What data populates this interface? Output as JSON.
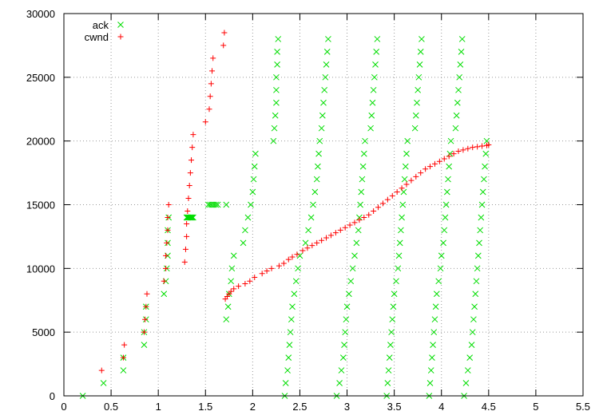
{
  "chart_data": {
    "type": "scatter",
    "title": "",
    "xlabel": "",
    "ylabel": "",
    "xlim": [
      0,
      5.5
    ],
    "ylim": [
      0,
      30000
    ],
    "grid": true,
    "grid_style": "dotted",
    "legend_position": "top-left",
    "x_ticks": [
      "0",
      "0.5",
      "1",
      "1.5",
      "2",
      "2.5",
      "3",
      "3.5",
      "4",
      "4.5",
      "5",
      "5.5"
    ],
    "y_ticks": [
      "0",
      "5000",
      "10000",
      "15000",
      "20000",
      "25000",
      "30000"
    ],
    "series": [
      {
        "name": "ack",
        "marker": "x",
        "color": "#00dd00",
        "points": [
          [
            0.2,
            0
          ],
          [
            0.42,
            1000
          ],
          [
            0.63,
            2000
          ],
          [
            0.63,
            3000
          ],
          [
            0.85,
            4000
          ],
          [
            0.85,
            5000
          ],
          [
            0.87,
            6000
          ],
          [
            0.87,
            7000
          ],
          [
            1.06,
            8000
          ],
          [
            1.08,
            9000
          ],
          [
            1.09,
            10000
          ],
          [
            1.1,
            11000
          ],
          [
            1.1,
            12000
          ],
          [
            1.1,
            13000
          ],
          [
            1.11,
            14000
          ],
          [
            1.3,
            14000
          ],
          [
            1.31,
            14000
          ],
          [
            1.32,
            14000
          ],
          [
            1.33,
            14000
          ],
          [
            1.34,
            14000
          ],
          [
            1.35,
            14000
          ],
          [
            1.36,
            14000
          ],
          [
            1.37,
            14000
          ],
          [
            1.53,
            15000
          ],
          [
            1.55,
            15000
          ],
          [
            1.57,
            15000
          ],
          [
            1.59,
            15000
          ],
          [
            1.61,
            15000
          ],
          [
            1.63,
            15000
          ],
          [
            1.72,
            15000
          ],
          [
            1.72,
            6000
          ],
          [
            1.74,
            7000
          ],
          [
            1.75,
            8000
          ],
          [
            1.77,
            9000
          ],
          [
            1.78,
            10000
          ],
          [
            1.8,
            11000
          ],
          [
            1.9,
            12000
          ],
          [
            1.92,
            13000
          ],
          [
            1.95,
            14000
          ],
          [
            1.98,
            15000
          ],
          [
            2.0,
            16000
          ],
          [
            2.01,
            17000
          ],
          [
            2.02,
            18000
          ],
          [
            2.03,
            19000
          ],
          [
            2.22,
            20000
          ],
          [
            2.23,
            21000
          ],
          [
            2.24,
            22000
          ],
          [
            2.25,
            23000
          ],
          [
            2.25,
            24000
          ],
          [
            2.25,
            25000
          ],
          [
            2.26,
            26000
          ],
          [
            2.26,
            27000
          ],
          [
            2.27,
            28000
          ],
          [
            2.34,
            0
          ],
          [
            2.35,
            1000
          ],
          [
            2.37,
            2000
          ],
          [
            2.38,
            3000
          ],
          [
            2.39,
            4000
          ],
          [
            2.4,
            5000
          ],
          [
            2.41,
            6000
          ],
          [
            2.42,
            7000
          ],
          [
            2.44,
            8000
          ],
          [
            2.46,
            9000
          ],
          [
            2.48,
            10000
          ],
          [
            2.5,
            11000
          ],
          [
            2.56,
            12000
          ],
          [
            2.59,
            13000
          ],
          [
            2.62,
            14000
          ],
          [
            2.64,
            15000
          ],
          [
            2.66,
            16000
          ],
          [
            2.68,
            17000
          ],
          [
            2.69,
            18000
          ],
          [
            2.7,
            19000
          ],
          [
            2.71,
            20000
          ],
          [
            2.73,
            21000
          ],
          [
            2.74,
            22000
          ],
          [
            2.75,
            23000
          ],
          [
            2.76,
            24000
          ],
          [
            2.77,
            25000
          ],
          [
            2.78,
            26000
          ],
          [
            2.79,
            27000
          ],
          [
            2.8,
            28000
          ],
          [
            2.89,
            0
          ],
          [
            2.92,
            1000
          ],
          [
            2.94,
            2000
          ],
          [
            2.96,
            3000
          ],
          [
            2.97,
            4000
          ],
          [
            2.98,
            5000
          ],
          [
            2.99,
            6000
          ],
          [
            3.0,
            7000
          ],
          [
            3.02,
            8000
          ],
          [
            3.04,
            9000
          ],
          [
            3.06,
            10000
          ],
          [
            3.08,
            11000
          ],
          [
            3.1,
            12000
          ],
          [
            3.12,
            13000
          ],
          [
            3.13,
            14000
          ],
          [
            3.14,
            15000
          ],
          [
            3.15,
            16000
          ],
          [
            3.16,
            17000
          ],
          [
            3.17,
            18000
          ],
          [
            3.18,
            19000
          ],
          [
            3.19,
            20000
          ],
          [
            3.25,
            21000
          ],
          [
            3.26,
            22000
          ],
          [
            3.27,
            23000
          ],
          [
            3.28,
            24000
          ],
          [
            3.29,
            25000
          ],
          [
            3.3,
            26000
          ],
          [
            3.31,
            27000
          ],
          [
            3.32,
            28000
          ],
          [
            3.42,
            0
          ],
          [
            3.43,
            1000
          ],
          [
            3.44,
            2000
          ],
          [
            3.45,
            3000
          ],
          [
            3.46,
            4000
          ],
          [
            3.47,
            5000
          ],
          [
            3.48,
            6000
          ],
          [
            3.49,
            7000
          ],
          [
            3.5,
            8000
          ],
          [
            3.52,
            9000
          ],
          [
            3.54,
            10000
          ],
          [
            3.55,
            11000
          ],
          [
            3.56,
            12000
          ],
          [
            3.57,
            13000
          ],
          [
            3.58,
            14000
          ],
          [
            3.59,
            15000
          ],
          [
            3.6,
            16000
          ],
          [
            3.61,
            17000
          ],
          [
            3.62,
            18000
          ],
          [
            3.63,
            19000
          ],
          [
            3.64,
            20000
          ],
          [
            3.72,
            21000
          ],
          [
            3.73,
            22000
          ],
          [
            3.74,
            23000
          ],
          [
            3.75,
            24000
          ],
          [
            3.76,
            25000
          ],
          [
            3.77,
            26000
          ],
          [
            3.78,
            27000
          ],
          [
            3.79,
            28000
          ],
          [
            3.87,
            0
          ],
          [
            3.88,
            1000
          ],
          [
            3.89,
            2000
          ],
          [
            3.9,
            3000
          ],
          [
            3.91,
            4000
          ],
          [
            3.92,
            5000
          ],
          [
            3.93,
            6000
          ],
          [
            3.94,
            7000
          ],
          [
            3.95,
            8000
          ],
          [
            3.97,
            9000
          ],
          [
            3.99,
            10000
          ],
          [
            4.0,
            11000
          ],
          [
            4.02,
            12000
          ],
          [
            4.03,
            13000
          ],
          [
            4.04,
            14000
          ],
          [
            4.05,
            15000
          ],
          [
            4.06,
            16000
          ],
          [
            4.07,
            17000
          ],
          [
            4.08,
            18000
          ],
          [
            4.09,
            19000
          ],
          [
            4.1,
            20000
          ],
          [
            4.15,
            21000
          ],
          [
            4.16,
            22000
          ],
          [
            4.17,
            23000
          ],
          [
            4.18,
            24000
          ],
          [
            4.19,
            25000
          ],
          [
            4.2,
            26000
          ],
          [
            4.21,
            27000
          ],
          [
            4.22,
            28000
          ],
          [
            4.24,
            0
          ],
          [
            4.26,
            1000
          ],
          [
            4.28,
            2000
          ],
          [
            4.3,
            3000
          ],
          [
            4.32,
            4000
          ],
          [
            4.33,
            5000
          ],
          [
            4.34,
            6000
          ],
          [
            4.35,
            7000
          ],
          [
            4.36,
            8000
          ],
          [
            4.37,
            9000
          ],
          [
            4.38,
            10000
          ],
          [
            4.39,
            11000
          ],
          [
            4.4,
            12000
          ],
          [
            4.41,
            13000
          ],
          [
            4.42,
            14000
          ],
          [
            4.43,
            15000
          ],
          [
            4.44,
            16000
          ],
          [
            4.45,
            17000
          ],
          [
            4.46,
            18000
          ],
          [
            4.47,
            19000
          ],
          [
            4.48,
            20000
          ]
        ]
      },
      {
        "name": "cwnd",
        "marker": "+",
        "color": "#ff0000",
        "points": [
          [
            0.4,
            2000
          ],
          [
            0.63,
            3000
          ],
          [
            0.64,
            4000
          ],
          [
            0.85,
            5000
          ],
          [
            0.86,
            6000
          ],
          [
            0.87,
            7000
          ],
          [
            0.88,
            8000
          ],
          [
            1.06,
            9000
          ],
          [
            1.08,
            10000
          ],
          [
            1.08,
            11000
          ],
          [
            1.09,
            12000
          ],
          [
            1.1,
            13000
          ],
          [
            1.1,
            14000
          ],
          [
            1.11,
            15000
          ],
          [
            1.28,
            10500
          ],
          [
            1.29,
            11500
          ],
          [
            1.3,
            12500
          ],
          [
            1.3,
            13500
          ],
          [
            1.31,
            14500
          ],
          [
            1.32,
            15500
          ],
          [
            1.33,
            16500
          ],
          [
            1.34,
            17500
          ],
          [
            1.35,
            18500
          ],
          [
            1.36,
            19500
          ],
          [
            1.37,
            20500
          ],
          [
            1.5,
            21500
          ],
          [
            1.54,
            22500
          ],
          [
            1.55,
            23500
          ],
          [
            1.56,
            24500
          ],
          [
            1.57,
            25500
          ],
          [
            1.58,
            26500
          ],
          [
            1.69,
            27500
          ],
          [
            1.7,
            28500
          ],
          [
            1.71,
            7600
          ],
          [
            1.73,
            7800
          ],
          [
            1.75,
            8000
          ],
          [
            1.77,
            8200
          ],
          [
            1.8,
            8400
          ],
          [
            1.85,
            8600
          ],
          [
            1.92,
            8800
          ],
          [
            1.97,
            9000
          ],
          [
            2.02,
            9300
          ],
          [
            2.1,
            9600
          ],
          [
            2.15,
            9800
          ],
          [
            2.2,
            10000
          ],
          [
            2.28,
            10200
          ],
          [
            2.33,
            10400
          ],
          [
            2.38,
            10700
          ],
          [
            2.42,
            10900
          ],
          [
            2.47,
            11100
          ],
          [
            2.53,
            11400
          ],
          [
            2.58,
            11600
          ],
          [
            2.63,
            11800
          ],
          [
            2.68,
            12000
          ],
          [
            2.73,
            12200
          ],
          [
            2.78,
            12400
          ],
          [
            2.83,
            12600
          ],
          [
            2.88,
            12800
          ],
          [
            2.93,
            13000
          ],
          [
            2.98,
            13200
          ],
          [
            3.03,
            13400
          ],
          [
            3.08,
            13600
          ],
          [
            3.13,
            13800
          ],
          [
            3.18,
            14000
          ],
          [
            3.23,
            14200
          ],
          [
            3.28,
            14500
          ],
          [
            3.33,
            14800
          ],
          [
            3.38,
            15100
          ],
          [
            3.43,
            15400
          ],
          [
            3.48,
            15700
          ],
          [
            3.53,
            16000
          ],
          [
            3.58,
            16300
          ],
          [
            3.63,
            16600
          ],
          [
            3.68,
            16900
          ],
          [
            3.73,
            17200
          ],
          [
            3.78,
            17500
          ],
          [
            3.83,
            17800
          ],
          [
            3.88,
            18000
          ],
          [
            3.93,
            18200
          ],
          [
            3.98,
            18400
          ],
          [
            4.03,
            18600
          ],
          [
            4.08,
            18800
          ],
          [
            4.13,
            19000
          ],
          [
            4.18,
            19200
          ],
          [
            4.23,
            19300
          ],
          [
            4.28,
            19400
          ],
          [
            4.33,
            19500
          ],
          [
            4.38,
            19550
          ],
          [
            4.43,
            19600
          ],
          [
            4.48,
            19650
          ],
          [
            4.5,
            19700
          ]
        ]
      }
    ]
  }
}
